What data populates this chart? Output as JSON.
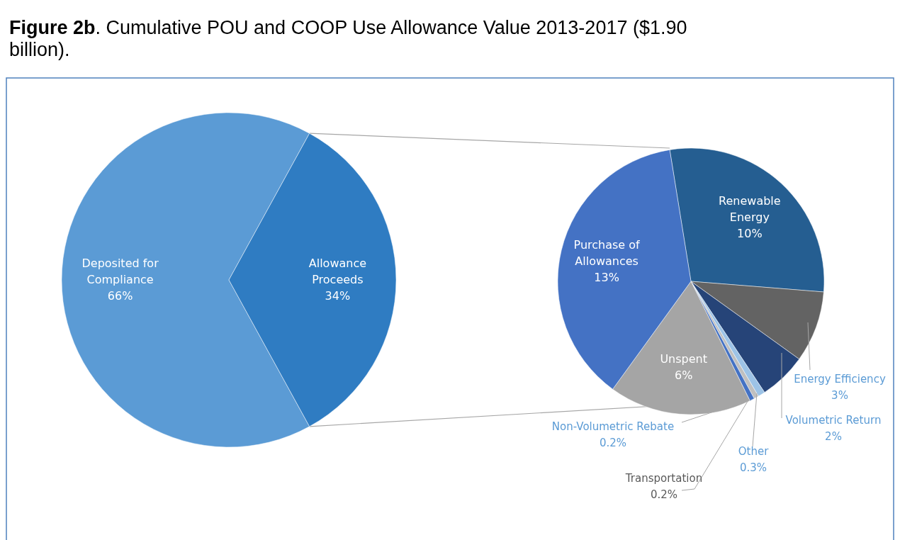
{
  "chart_data": [
    {
      "type": "pie",
      "title": "Figure 2b. Cumulative POU and COOP Use Allowance Value 2013-2017 ($1.90 billion).",
      "categories": [
        "Deposited for Compliance",
        "Allowance Proceeds"
      ],
      "values": [
        66,
        34
      ],
      "colors": [
        "#5b9bd5",
        "#2f7cc2"
      ],
      "value_labels": [
        "66%",
        "34%"
      ]
    },
    {
      "type": "pie",
      "categories": [
        "Renewable Energy",
        "Energy Efficiency",
        "Volumetric Return",
        "Other",
        "Transportation",
        "Non-Volumetric Rebate",
        "Unspent",
        "Purchase of Allowances"
      ],
      "values": [
        10,
        3,
        2,
        0.3,
        0.2,
        0.2,
        6,
        13
      ],
      "colors": [
        "#255e91",
        "#636363",
        "#264478",
        "#9dc3e6",
        "#bfbfbf",
        "#4472c4",
        "#a5a5a5",
        "#4472c4"
      ],
      "value_labels": [
        "10%",
        "3%",
        "2%",
        "0.3%",
        "0.2%",
        "0.2%",
        "6%",
        "13%"
      ]
    }
  ]
}
